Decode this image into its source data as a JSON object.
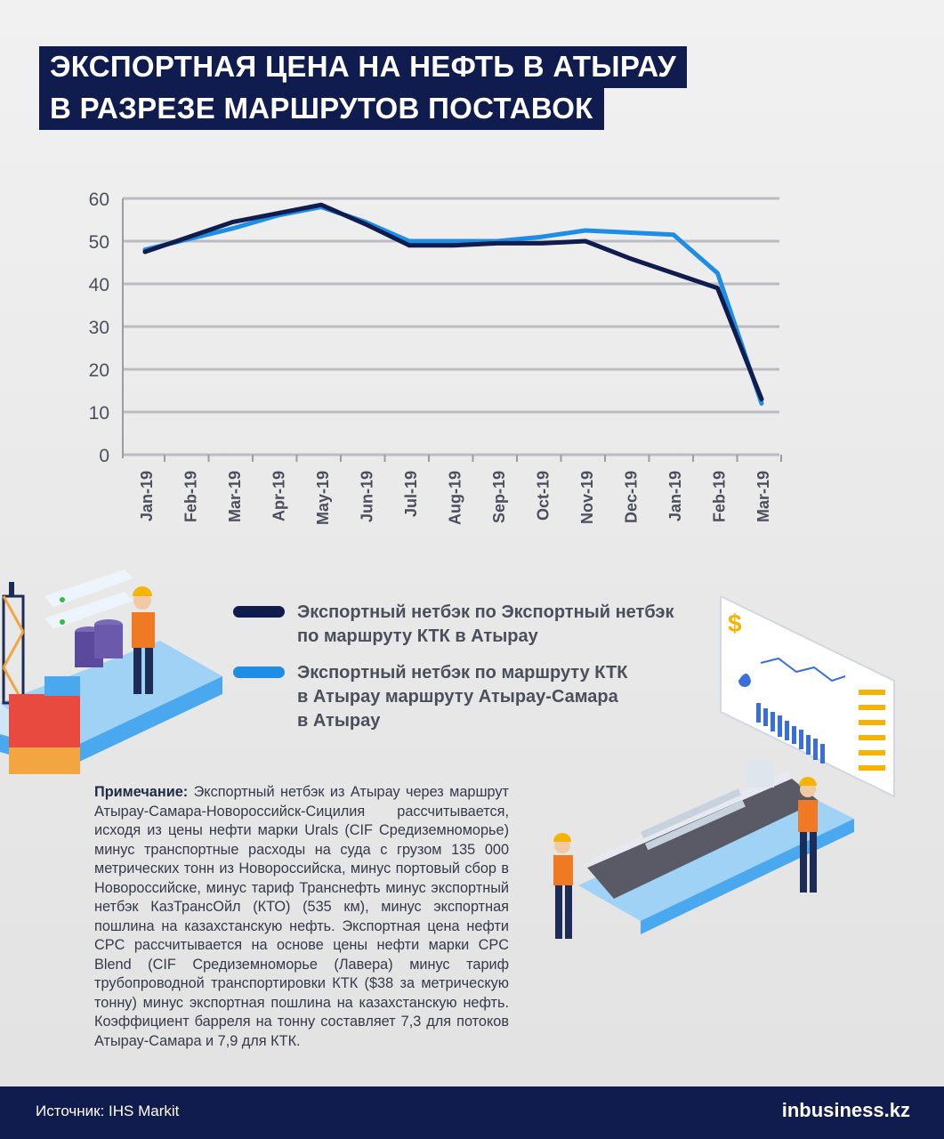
{
  "header": {
    "title_line1": "ЭКСПОРТНАЯ ЦЕНА НА НЕФТЬ В АТЫРАУ",
    "title_line2": "В РАЗРЕЗЕ МАРШРУТОВ ПОСТАВОК"
  },
  "chart_data": {
    "type": "line",
    "categories": [
      "Jan-19",
      "Feb-19",
      "Mar-19",
      "Apr-19",
      "May-19",
      "Jun-19",
      "Jul-19",
      "Aug-19",
      "Sep-19",
      "Oct-19",
      "Nov-19",
      "Dec-19",
      "Jan-19",
      "Feb-19",
      "Mar-19"
    ],
    "yticks": [
      "0",
      "10",
      "20",
      "30",
      "40",
      "50",
      "60"
    ],
    "ylim": [
      0,
      60
    ],
    "grid": true,
    "series": [
      {
        "name": "Экспортный нетбэк по Экспортный нетбэк по маршруту КТК в Атырау",
        "color": "#0f1c4d",
        "values": [
          47.5,
          51,
          54.5,
          56.5,
          58.5,
          54,
          49,
          49,
          49.5,
          49.5,
          50,
          46,
          42.5,
          39,
          13
        ]
      },
      {
        "name": "Экспортный нетбэк по маршруту КТК в Атырау маршруту Атырау-Самара в Атырау",
        "color": "#1e8de6",
        "values": [
          48,
          50.5,
          53,
          56,
          58,
          54.5,
          50,
          50,
          50,
          51,
          52.5,
          52,
          51.5,
          42.5,
          12
        ]
      }
    ]
  },
  "legend": {
    "item1_line1": "Экспортный нетбэк по Экспортный нетбэк",
    "item1_line2": "по маршруту КТК в Атырау",
    "item2_line1": "Экспортный нетбэк по маршруту КТК",
    "item2_line2": "в Атырау маршруту Атырау-Самара",
    "item2_line3": "в Атырау",
    "color1": "#0f1c4d",
    "color2": "#1e8de6"
  },
  "note": {
    "label": "Примечание:",
    "text": " Экспортный нетбэк из Атырау через маршрут Атырау-Самара-Новороссийск-Сицилия рассчитывается, исходя из цены нефти марки Urals (CIF Средиземноморье) минус транспортные расходы на суда с грузом 135 000 метрических тонн из Новороссийска, минус портовый сбор в Новороссийске, минус тариф Транснефть минус экспортный нетбэк КазТрансОйл (КТО) (535 км), минус экспортная пошлина на казахстанскую нефть. Экспортная цена нефти CPC рассчитывается на основе цены нефти марки CPC Blend (CIF Средиземноморье (Лавера) минус тариф трубопроводной транспортировки КТК ($38 за метрическую тонну) минус экспортная пошлина на казахстанскую нефть. Коэффициент барреля на тонну составляет 7,3 для потоков Атырау-Самара и 7,9 для КТК."
  },
  "footer": {
    "source": "Источник: IHS Markit",
    "brand": "inbusiness.kz"
  },
  "icons": [
    "oil-platform-icon",
    "worker-icon",
    "oil-barrel-icon",
    "dashboard-icon",
    "dollar-icon",
    "oil-drop-icon",
    "tanker-ship-icon"
  ]
}
